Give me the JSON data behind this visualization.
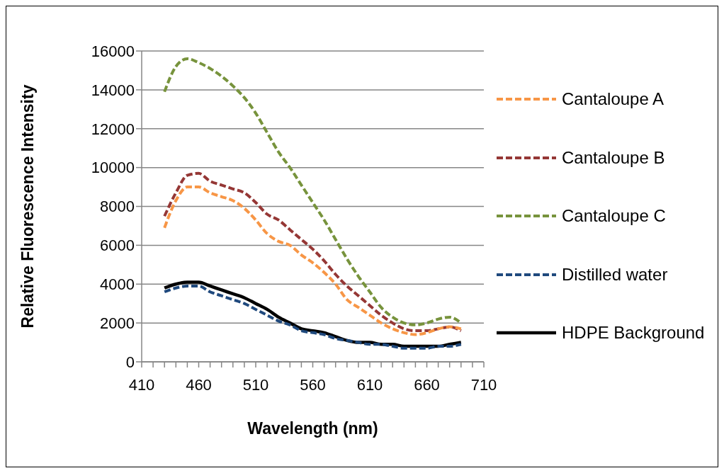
{
  "chart_data": {
    "type": "line",
    "xlabel": "Wavelength (nm)",
    "ylabel": "Relative Fluorescence Intensity",
    "x": [
      430,
      440,
      450,
      460,
      470,
      480,
      490,
      500,
      510,
      520,
      530,
      540,
      550,
      560,
      570,
      580,
      590,
      600,
      610,
      620,
      630,
      640,
      650,
      660,
      670,
      680,
      690
    ],
    "series": [
      {
        "name": "Cantaloupe A",
        "color": "#f79646",
        "line_style": "dashed",
        "values": [
          6900,
          8300,
          9000,
          9000,
          8700,
          8500,
          8300,
          7900,
          7300,
          6600,
          6200,
          6000,
          5500,
          5100,
          4600,
          4000,
          3200,
          2800,
          2400,
          2000,
          1700,
          1500,
          1400,
          1500,
          1700,
          1800,
          1700
        ]
      },
      {
        "name": "Cantaloupe B",
        "color": "#953735",
        "line_style": "dashed",
        "values": [
          7500,
          8700,
          9600,
          9700,
          9300,
          9100,
          8900,
          8700,
          8200,
          7600,
          7300,
          6800,
          6300,
          5800,
          5200,
          4500,
          3900,
          3400,
          2900,
          2400,
          2000,
          1700,
          1600,
          1600,
          1700,
          1800,
          1600
        ]
      },
      {
        "name": "Cantaloupe C",
        "color": "#77933c",
        "line_style": "dashed",
        "values": [
          13900,
          15200,
          15600,
          15400,
          15100,
          14700,
          14200,
          13600,
          12800,
          11800,
          10800,
          10000,
          9100,
          8200,
          7300,
          6300,
          5300,
          4400,
          3600,
          2800,
          2300,
          2000,
          1900,
          2000,
          2200,
          2300,
          2000
        ]
      },
      {
        "name": "Distilled water",
        "color": "#1f497d",
        "line_style": "dashed",
        "values": [
          3600,
          3800,
          3900,
          3900,
          3600,
          3400,
          3200,
          3000,
          2700,
          2400,
          2100,
          1900,
          1600,
          1500,
          1400,
          1200,
          1100,
          1000,
          900,
          900,
          800,
          700,
          700,
          700,
          800,
          800,
          900
        ]
      },
      {
        "name": "HDPE Background",
        "color": "#000000",
        "line_style": "solid",
        "values": [
          3800,
          4000,
          4100,
          4100,
          3900,
          3700,
          3500,
          3300,
          3000,
          2700,
          2300,
          2000,
          1700,
          1600,
          1500,
          1300,
          1100,
          1000,
          1000,
          900,
          900,
          800,
          800,
          800,
          800,
          900,
          1000
        ]
      }
    ],
    "xlim": [
      410,
      710
    ],
    "xticks": [
      410,
      {
        "value": 420,
        "label": null
      },
      {
        "value": 430,
        "label": null
      },
      {
        "value": 440,
        "label": null
      },
      {
        "value": 450,
        "label": null
      },
      460,
      {
        "value": 470,
        "label": null
      },
      {
        "value": 480,
        "label": null
      },
      {
        "value": 490,
        "label": null
      },
      {
        "value": 500,
        "label": null
      },
      510,
      {
        "value": 520,
        "label": null
      },
      {
        "value": 530,
        "label": null
      },
      {
        "value": 540,
        "label": null
      },
      {
        "value": 550,
        "label": null
      },
      560,
      {
        "value": 570,
        "label": null
      },
      {
        "value": 580,
        "label": null
      },
      {
        "value": 590,
        "label": null
      },
      {
        "value": 600,
        "label": null
      },
      610,
      {
        "value": 620,
        "label": null
      },
      {
        "value": 630,
        "label": null
      },
      {
        "value": 640,
        "label": null
      },
      {
        "value": 650,
        "label": null
      },
      660,
      {
        "value": 670,
        "label": null
      },
      {
        "value": 680,
        "label": null
      },
      {
        "value": 690,
        "label": null
      },
      {
        "value": 700,
        "label": null
      },
      710
    ],
    "ylim": [
      0,
      16000
    ],
    "yticks": [
      0,
      2000,
      4000,
      6000,
      8000,
      10000,
      12000,
      14000,
      16000
    ],
    "grid": "y",
    "legend": "right",
    "marker": "none"
  }
}
